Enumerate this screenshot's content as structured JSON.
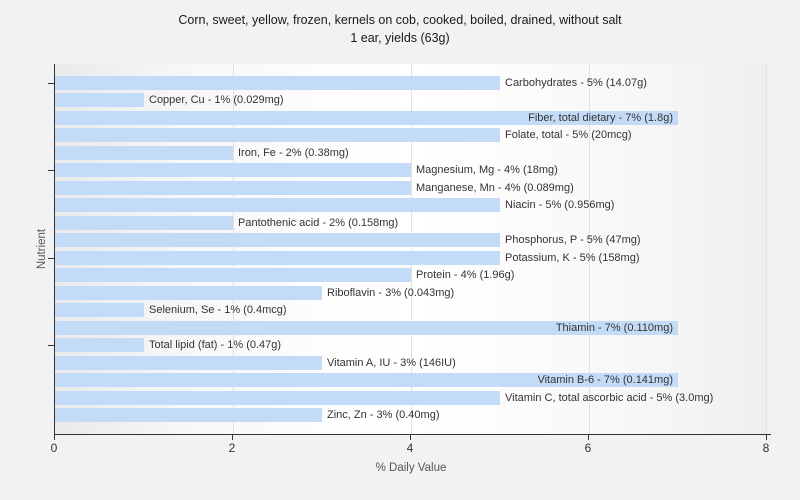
{
  "chart_data": {
    "type": "bar",
    "orientation": "horizontal",
    "title": "Corn, sweet, yellow, frozen, kernels on cob, cooked, boiled, drained, without salt",
    "subtitle": "1 ear, yields (63g)",
    "xlabel": "% Daily Value",
    "ylabel": "Nutrient",
    "xlim": [
      0,
      8
    ],
    "xticks": [
      0,
      2,
      4,
      6,
      8
    ],
    "grid": "vertical-gridlines-at-xticks",
    "legend": false,
    "colors": {
      "bar": "#c4dbf8",
      "axis": "#333333",
      "gridline": "#e1e1e1",
      "text": "#333333",
      "caption_text": "#555555",
      "figure_background": "#f2f2f2"
    },
    "categories": [
      "Carbohydrates",
      "Copper, Cu",
      "Fiber, total dietary",
      "Folate, total",
      "Iron, Fe",
      "Magnesium, Mg",
      "Manganese, Mn",
      "Niacin",
      "Pantothenic acid",
      "Phosphorus, P",
      "Potassium, K",
      "Protein",
      "Riboflavin",
      "Selenium, Se",
      "Thiamin",
      "Total lipid (fat)",
      "Vitamin A, IU",
      "Vitamin B-6",
      "Vitamin C, total ascorbic acid",
      "Zinc, Zn"
    ],
    "series": [
      {
        "name": "% Daily Value",
        "values": [
          5,
          1,
          7,
          5,
          2,
          4,
          4,
          5,
          2,
          5,
          5,
          4,
          3,
          1,
          7,
          1,
          3,
          7,
          5,
          3
        ]
      }
    ],
    "amounts": [
      "14.07g",
      "0.029mg",
      "1.8g",
      "20mcg",
      "0.38mg",
      "18mg",
      "0.089mg",
      "0.956mg",
      "0.158mg",
      "47mg",
      "158mg",
      "1.96g",
      "0.043mg",
      "0.4mcg",
      "0.110mg",
      "0.47g",
      "146IU",
      "0.141mg",
      "3.0mg",
      "0.40mg"
    ],
    "bar_labels": [
      "Carbohydrates - 5% (14.07g)",
      "Copper, Cu - 1% (0.029mg)",
      "Fiber, total dietary - 7% (1.8g)",
      "Folate, total - 5% (20mcg)",
      "Iron, Fe - 2% (0.38mg)",
      "Magnesium, Mg - 4% (18mg)",
      "Manganese, Mn - 4% (0.089mg)",
      "Niacin - 5% (0.956mg)",
      "Pantothenic acid - 2% (0.158mg)",
      "Phosphorus, P - 5% (47mg)",
      "Potassium, K - 5% (158mg)",
      "Protein - 4% (1.96g)",
      "Riboflavin - 3% (0.043mg)",
      "Selenium, Se - 1% (0.4mcg)",
      "Thiamin - 7% (0.110mg)",
      "Total lipid (fat) - 1% (0.47g)",
      "Vitamin A, IU - 3% (146IU)",
      "Vitamin B-6 - 7% (0.141mg)",
      "Vitamin C, total ascorbic acid - 5% (3.0mg)",
      "Zinc, Zn - 3% (0.40mg)"
    ],
    "ytick_bar_indices": [
      0,
      5,
      10,
      15
    ]
  }
}
